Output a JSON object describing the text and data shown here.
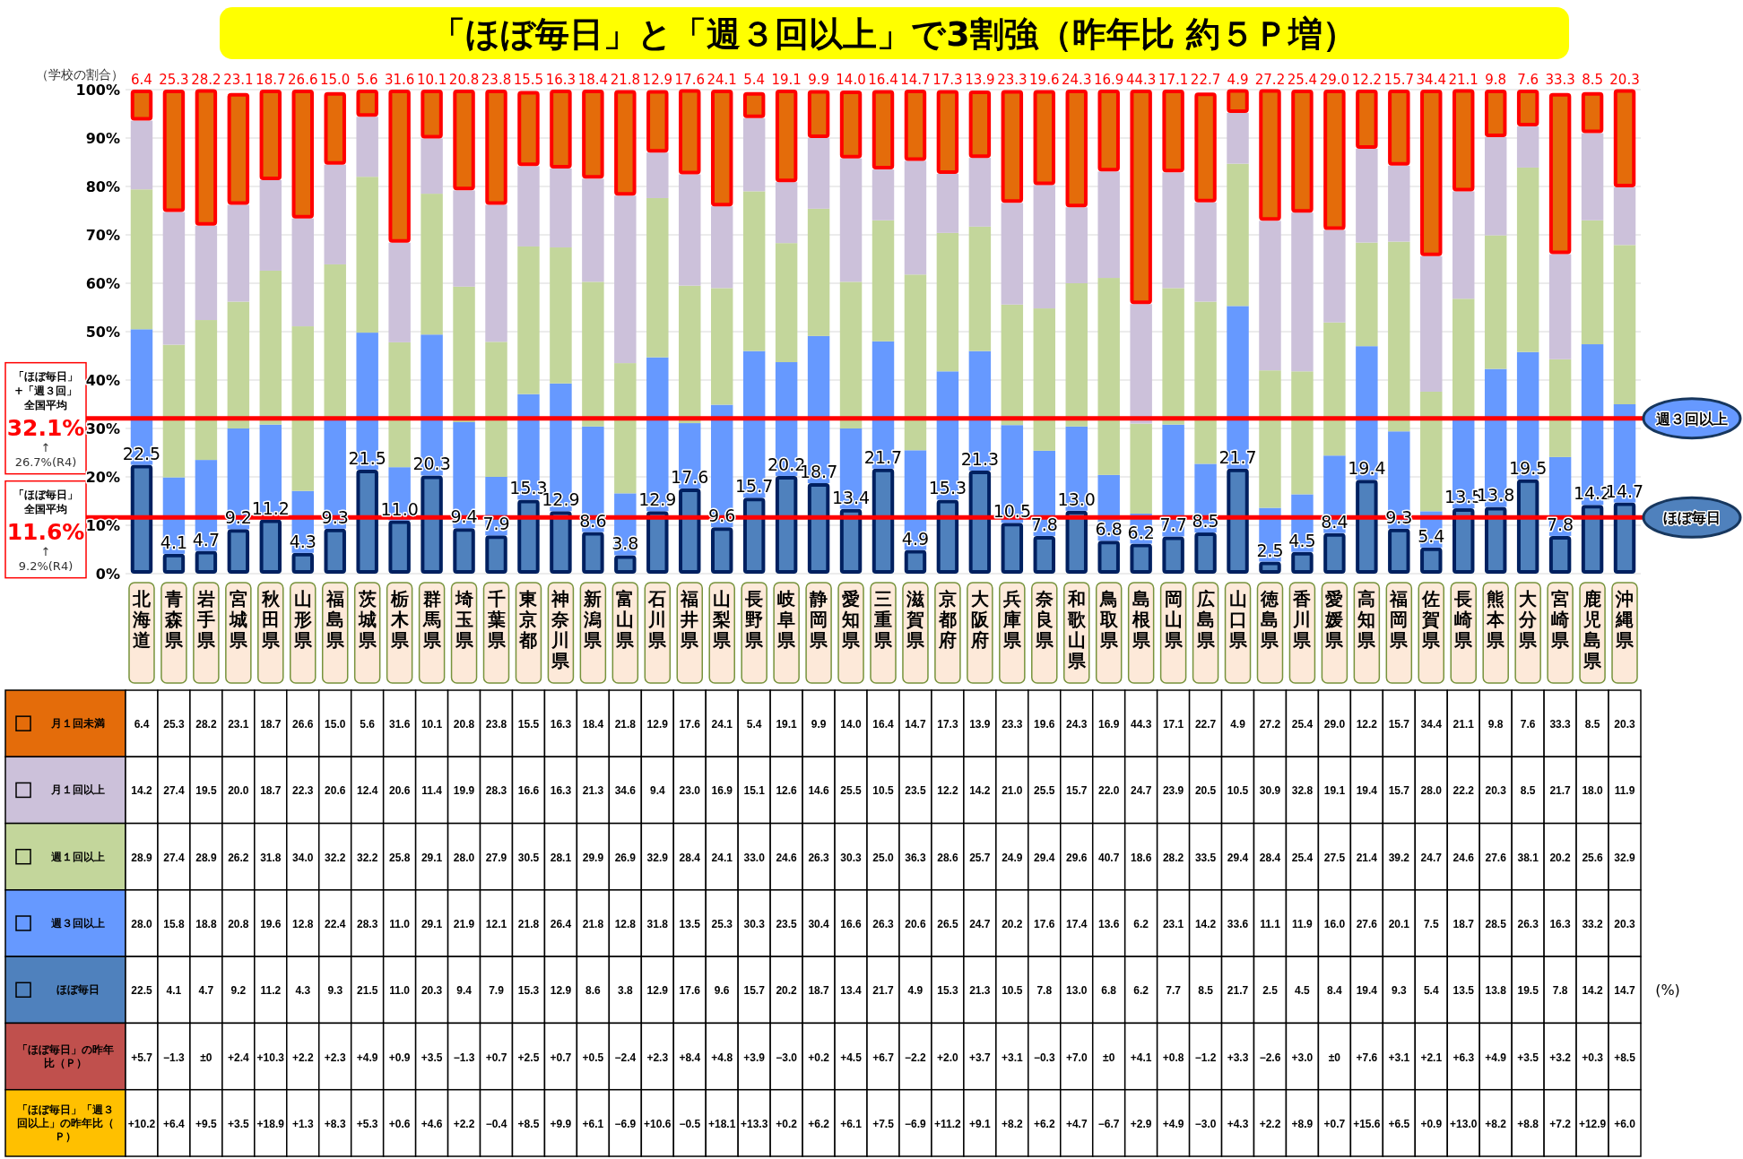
{
  "chart_data": {
    "type": "bar",
    "stacked": true,
    "title": "「ほぼ毎日」と「週３回以上」で3割強（昨年比 約５Ｐ増）",
    "ylabel": "（学校の割合）",
    "categories": [
      "北海道",
      "青森県",
      "岩手県",
      "宮城県",
      "秋田県",
      "山形県",
      "福島県",
      "茨城県",
      "栃木県",
      "群馬県",
      "埼玉県",
      "千葉県",
      "東京都",
      "神奈川県",
      "新潟県",
      "富山県",
      "石川県",
      "福井県",
      "山梨県",
      "長野県",
      "岐阜県",
      "静岡県",
      "愛知県",
      "三重県",
      "滋賀県",
      "京都府",
      "大阪府",
      "兵庫県",
      "奈良県",
      "和歌山県",
      "鳥取県",
      "島根県",
      "岡山県",
      "広島県",
      "山口県",
      "徳島県",
      "香川県",
      "愛媛県",
      "高知県",
      "福岡県",
      "佐賀県",
      "長崎県",
      "熊本県",
      "大分県",
      "宮崎県",
      "鹿児島県",
      "沖縄県"
    ],
    "series": [
      {
        "name": "ほぼ毎日",
        "color": "#4f81bd",
        "values": [
          22.5,
          4.1,
          4.7,
          9.2,
          11.2,
          4.3,
          9.3,
          21.5,
          11.0,
          20.3,
          9.4,
          7.9,
          15.3,
          12.9,
          8.6,
          3.8,
          12.9,
          17.6,
          9.6,
          15.7,
          20.2,
          18.7,
          13.4,
          21.7,
          4.9,
          15.3,
          21.3,
          10.5,
          7.8,
          13.0,
          6.8,
          6.2,
          7.7,
          8.5,
          21.7,
          2.5,
          4.5,
          8.4,
          19.4,
          9.3,
          5.4,
          13.5,
          13.8,
          19.5,
          7.8,
          14.2,
          14.7
        ],
        "value_labels": [
          "22.5",
          "4.1",
          "4.7",
          "9.2",
          "11.2",
          "4.3",
          "9.3",
          "21.5",
          "11.0",
          "20.3",
          "9.4",
          "7.9",
          "15.3",
          "12.9",
          "8.6",
          "3.8",
          "12.9",
          "17.6",
          "9.6",
          "15.7",
          "20.2",
          "18.7",
          "13.4",
          "21.7",
          "4.9",
          "15.3",
          "21.3",
          "10.5",
          "7.8",
          "13.0",
          "6.8",
          "6.2",
          "7.7",
          "8.5",
          "21.7",
          "2.5",
          "4.5",
          "8.4",
          "19.4",
          "9.3",
          "5.4",
          "13.5",
          "13.8",
          "19.5",
          "7.8",
          "14.2",
          "14.7"
        ]
      },
      {
        "name": "週３回以上",
        "color": "#6699ff",
        "values": [
          28.0,
          15.8,
          18.8,
          20.8,
          19.6,
          12.8,
          22.4,
          28.3,
          11.0,
          29.1,
          21.9,
          12.1,
          21.8,
          26.4,
          21.8,
          12.8,
          31.8,
          13.5,
          25.3,
          30.3,
          23.5,
          30.4,
          16.6,
          26.3,
          20.6,
          26.5,
          24.7,
          20.2,
          17.6,
          17.4,
          13.6,
          6.2,
          23.1,
          14.2,
          33.6,
          11.1,
          11.9,
          16.0,
          27.6,
          20.1,
          7.5,
          18.7,
          28.5,
          26.3,
          16.3,
          33.2,
          20.3
        ],
        "value_labels": [
          "28.0",
          "15.8",
          "18.8",
          "20.8",
          "19.6",
          "12.8",
          "22.4",
          "28.3",
          "11.0",
          "29.1",
          "21.9",
          "12.1",
          "21.8",
          "26.4",
          "21.8",
          "12.8",
          "31.8",
          "13.5",
          "25.3",
          "30.3",
          "23.5",
          "30.4",
          "16.6",
          "26.3",
          "20.6",
          "26.5",
          "24.7",
          "20.2",
          "17.6",
          "17.4",
          "13.6",
          "6.2",
          "23.1",
          "14.2",
          "33.6",
          "11.1",
          "11.9",
          "16.0",
          "27.6",
          "20.1",
          "7.5",
          "18.7",
          "28.5",
          "26.3",
          "16.3",
          "33.2",
          "20.3"
        ]
      },
      {
        "name": "週１回以上",
        "color": "#c3d69b",
        "values": [
          28.9,
          27.4,
          28.9,
          26.2,
          31.8,
          34.0,
          32.2,
          32.2,
          25.8,
          29.1,
          28.0,
          27.9,
          30.5,
          28.1,
          29.9,
          26.9,
          32.9,
          28.4,
          24.1,
          33.0,
          24.6,
          26.3,
          30.3,
          25.0,
          36.3,
          28.6,
          25.7,
          24.9,
          29.4,
          29.6,
          40.7,
          18.6,
          28.2,
          33.5,
          29.4,
          28.4,
          25.4,
          27.5,
          21.4,
          39.2,
          24.7,
          24.6,
          27.6,
          38.1,
          20.2,
          25.6,
          32.9
        ],
        "value_labels": [
          "28.9",
          "27.4",
          "28.9",
          "26.2",
          "31.8",
          "34.0",
          "32.2",
          "32.2",
          "25.8",
          "29.1",
          "28.0",
          "27.9",
          "30.5",
          "28.1",
          "29.9",
          "26.9",
          "32.9",
          "28.4",
          "24.1",
          "33.0",
          "24.6",
          "26.3",
          "30.3",
          "25.0",
          "36.3",
          "28.6",
          "25.7",
          "24.9",
          "29.4",
          "29.6",
          "40.7",
          "18.6",
          "28.2",
          "33.5",
          "29.4",
          "28.4",
          "25.4",
          "27.5",
          "21.4",
          "39.2",
          "24.7",
          "24.6",
          "27.6",
          "38.1",
          "20.2",
          "25.6",
          "32.9"
        ]
      },
      {
        "name": "月１回以上",
        "color": "#ccc1da",
        "values": [
          14.2,
          27.4,
          19.5,
          20.0,
          18.7,
          22.3,
          20.6,
          12.4,
          20.6,
          11.4,
          19.9,
          28.3,
          16.6,
          16.3,
          21.3,
          34.6,
          9.4,
          23.0,
          16.9,
          15.1,
          12.6,
          14.6,
          25.5,
          10.5,
          23.5,
          12.2,
          14.2,
          21.0,
          25.5,
          15.7,
          22.0,
          24.7,
          23.9,
          20.5,
          10.5,
          30.9,
          32.8,
          19.1,
          19.4,
          15.7,
          28.0,
          22.2,
          20.3,
          8.5,
          21.7,
          18.0,
          11.9
        ],
        "value_labels": [
          "14.2",
          "27.4",
          "19.5",
          "20.0",
          "18.7",
          "22.3",
          "20.6",
          "12.4",
          "20.6",
          "11.4",
          "19.9",
          "28.3",
          "16.6",
          "16.3",
          "21.3",
          "34.6",
          "9.4",
          "23.0",
          "16.9",
          "15.1",
          "12.6",
          "14.6",
          "25.5",
          "10.5",
          "23.5",
          "12.2",
          "14.2",
          "21.0",
          "25.5",
          "15.7",
          "22.0",
          "24.7",
          "23.9",
          "20.5",
          "10.5",
          "30.9",
          "32.8",
          "19.1",
          "19.4",
          "15.7",
          "28.0",
          "22.2",
          "20.3",
          "8.5",
          "21.7",
          "18.0",
          "11.9"
        ]
      },
      {
        "name": "月１回未満",
        "color": "#e46c0a",
        "values": [
          6.4,
          25.3,
          28.2,
          23.1,
          18.7,
          26.6,
          15.0,
          5.6,
          31.6,
          10.1,
          20.8,
          23.8,
          15.5,
          16.3,
          18.4,
          21.8,
          12.9,
          17.6,
          24.1,
          5.4,
          19.1,
          9.9,
          14.0,
          16.4,
          14.7,
          17.3,
          13.9,
          23.3,
          19.6,
          24.3,
          16.9,
          44.3,
          17.1,
          22.7,
          4.9,
          27.2,
          25.4,
          29.0,
          12.2,
          15.7,
          34.4,
          21.1,
          9.8,
          7.6,
          33.3,
          8.5,
          20.3
        ],
        "value_labels": [
          "6.4",
          "25.3",
          "28.2",
          "23.1",
          "18.7",
          "26.6",
          "15.0",
          "5.6",
          "31.6",
          "10.1",
          "20.8",
          "23.8",
          "15.5",
          "16.3",
          "18.4",
          "21.8",
          "12.9",
          "17.6",
          "24.1",
          "5.4",
          "19.1",
          "9.9",
          "14.0",
          "16.4",
          "14.7",
          "17.3",
          "13.9",
          "23.3",
          "19.6",
          "24.3",
          "16.9",
          "44.3",
          "17.1",
          "22.7",
          "4.9",
          "27.2",
          "25.4",
          "29.0",
          "12.2",
          "15.7",
          "34.4",
          "21.1",
          "9.8",
          "7.6",
          "33.3",
          "8.5",
          "20.3"
        ]
      }
    ],
    "ylim": [
      0,
      100
    ],
    "yticks": [
      {
        "value": 0,
        "label": "0%"
      },
      {
        "value": 10,
        "label": "10%"
      },
      {
        "value": 20,
        "label": "20%"
      },
      {
        "value": 30,
        "label": "30%"
      },
      {
        "value": 40,
        "label": "40%"
      },
      {
        "value": 50,
        "label": "50%"
      },
      {
        "value": 60,
        "label": "60%"
      },
      {
        "value": 70,
        "label": "70%"
      },
      {
        "value": 80,
        "label": "80%"
      },
      {
        "value": 90,
        "label": "90%"
      },
      {
        "value": 100,
        "label": "100%"
      }
    ],
    "grid": "y",
    "legend": "bottom left",
    "ref_lines": [
      {
        "axis": "y",
        "value": 32.1,
        "color": "#ff0000",
        "label": "「ほぼ毎日」+「週３回」全国平均"
      },
      {
        "axis": "y",
        "value": 11.6,
        "color": "#ff0000",
        "label": "「ほぼ毎日」全国平均"
      }
    ],
    "annotations": [
      "32.1%",
      "↑",
      "26.7%(R4)",
      "11.6%",
      "↑",
      "9.2%(R4)",
      "(%)",
      "「ほぼ毎日」の昨年比（Ｐ）",
      "+5.7",
      "−1.3",
      "±0",
      "+2.4",
      "+10.3",
      "+2.2",
      "+2.3",
      "+4.9",
      "+0.9",
      "+3.5",
      "−1.3",
      "+0.7",
      "+2.5",
      "+0.7",
      "+0.5",
      "−2.4",
      "+2.3",
      "+8.4",
      "+4.8",
      "+3.9",
      "−3.0",
      "+0.2",
      "+4.5",
      "+6.7",
      "−2.2",
      "+2.0",
      "+3.7",
      "+3.1",
      "−0.3",
      "+7.0",
      "±0",
      "+4.1",
      "+0.8",
      "−1.2",
      "+3.3",
      "−2.6",
      "+3.0",
      "±0",
      "+7.6",
      "+3.1",
      "+2.1",
      "+6.3",
      "+4.9",
      "+3.5",
      "+3.2",
      "+0.3",
      "+8.5",
      "「ほぼ毎日」「週３回以上」の昨年比（Ｐ）",
      "+10.2",
      "+6.4",
      "+9.5",
      "+3.5",
      "+18.9",
      "+1.3",
      "+8.3",
      "+5.3",
      "+0.6",
      "+4.6",
      "+2.2",
      "−0.4",
      "+8.5",
      "+9.9",
      "+6.1",
      "−6.9",
      "+10.6",
      "−0.5",
      "+18.1",
      "+13.3",
      "+0.2",
      "+6.2",
      "+6.1",
      "+7.5",
      "−6.9",
      "+11.2",
      "+9.1",
      "+8.2",
      "+6.2",
      "+4.7",
      "−6.7",
      "+2.9",
      "+4.9",
      "−3.0",
      "+4.3",
      "+2.2",
      "+8.9",
      "+0.7",
      "+15.6",
      "+6.5",
      "+0.9",
      "+13.0",
      "+8.2",
      "+8.8",
      "+7.2",
      "+12.9",
      "+6.0"
    ]
  }
}
